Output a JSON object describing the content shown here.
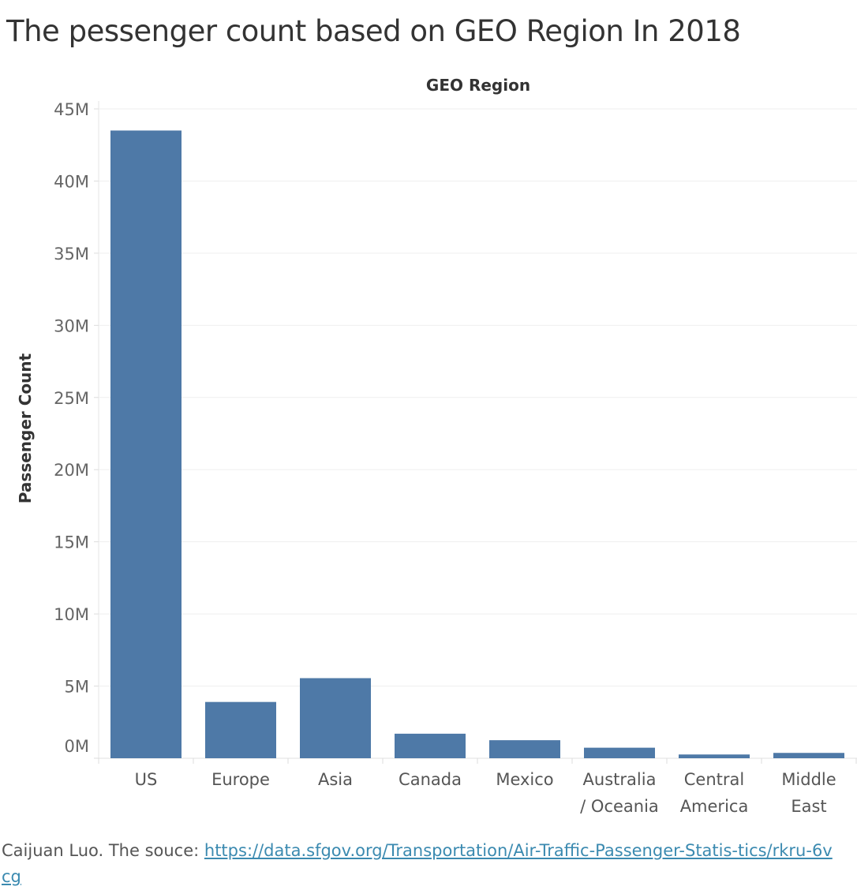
{
  "title": "The pessenger count based on GEO Region In 2018",
  "footer": {
    "author_text": "Caijuan Luo. The souce: ",
    "source_url": "https://data.sfgov.org/Transportation/Air-Traffic-Passenger-Statis-tics/rkru-6vcg"
  },
  "chart_data": {
    "type": "bar",
    "xlabel": "GEO Region",
    "ylabel": "Passenger Count",
    "categories": [
      [
        "US"
      ],
      [
        "Europe"
      ],
      [
        "Asia"
      ],
      [
        "Canada"
      ],
      [
        "Mexico"
      ],
      [
        "Australia",
        "/ Oceania"
      ],
      [
        "Central",
        "America"
      ],
      [
        "Middle",
        "East"
      ]
    ],
    "values": [
      43500000,
      3900000,
      5550000,
      1700000,
      1250000,
      730000,
      260000,
      370000
    ],
    "ylim": [
      0,
      45000000
    ],
    "yticks": [
      0,
      5000000,
      10000000,
      15000000,
      20000000,
      25000000,
      30000000,
      35000000,
      40000000,
      45000000
    ],
    "ytick_labels": [
      "0M",
      "5M",
      "10M",
      "15M",
      "20M",
      "25M",
      "30M",
      "35M",
      "40M",
      "45M"
    ],
    "bar_color": "#4e79a7",
    "grid": true
  }
}
